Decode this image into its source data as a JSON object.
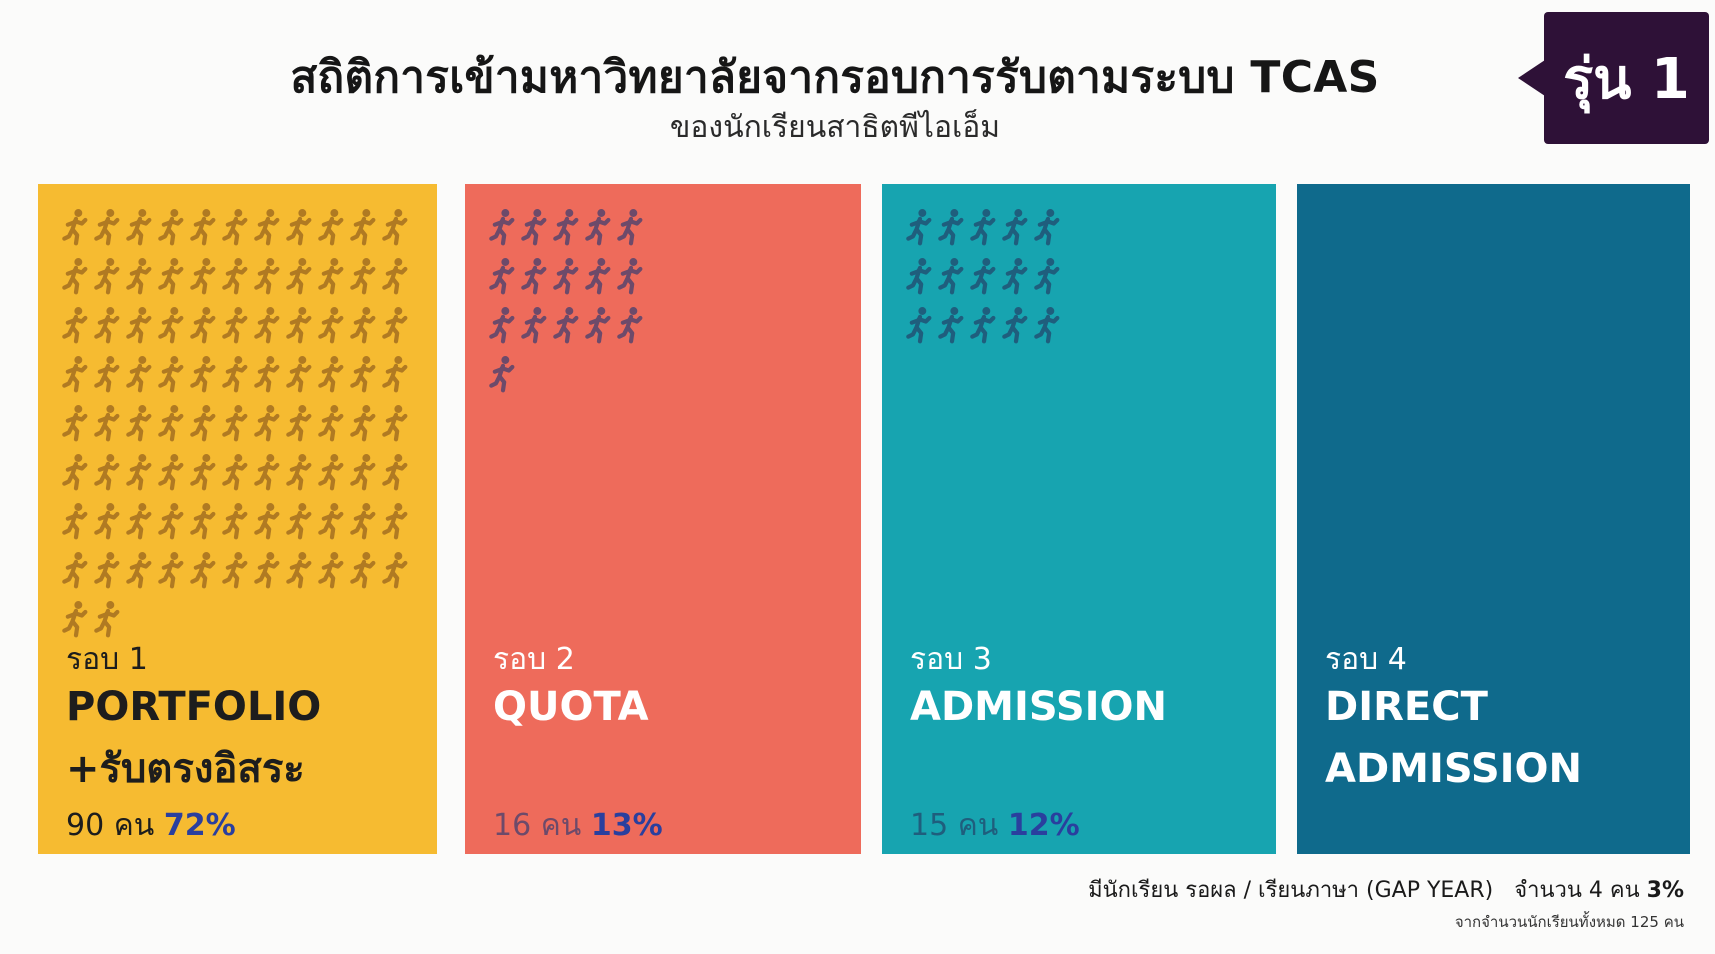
{
  "title": "สถิติการเข้ามหาวิทยาลัยจากรอบการรับตามระบบ TCAS",
  "subtitle": "ของนักเรียนสาธิตพีไอเอ็ม",
  "generation_badge": "รุ่น 1",
  "colors": {
    "portfolio": "#f6bb31",
    "quota": "#ee6b5b",
    "admission": "#17a4b0",
    "direct_admission": "#0f6a8c",
    "badge": "#2e1137",
    "percent": "#2a3f9e"
  },
  "icon": "running-person-icon",
  "chart_data": {
    "type": "bar",
    "title": "สถิติการเข้ามหาวิทยาลัยจากรอบการรับตามระบบ TCAS",
    "subtitle": "ของนักเรียนสาธิตพีไอเอ็ม",
    "categories": [
      {
        "round": "รอบ 1",
        "name_lines": [
          "PORTFOLIO",
          "+รับตรงอิสระ"
        ],
        "count": 90,
        "count_text": "90 คน",
        "percent_text": "72%",
        "color": "#f6bb31",
        "text_color": "#1d1d1d",
        "icon_color": "#b07a22",
        "icons_per_row": 11
      },
      {
        "round": "รอบ 2",
        "name_lines": [
          "QUOTA"
        ],
        "count": 16,
        "count_text": "16 คน",
        "percent_text": "13%",
        "color": "#ee6b5b",
        "text_color": "#ffffff",
        "icon_color": "#6d4a6a",
        "icons_per_row": 5
      },
      {
        "round": "รอบ 3",
        "name_lines": [
          "ADMISSION"
        ],
        "count": 15,
        "count_text": "15 คน",
        "percent_text": "12%",
        "color": "#17a4b0",
        "text_color": "#ffffff",
        "icon_color": "#1f5e7d",
        "icons_per_row": 5
      },
      {
        "round": "รอบ 4",
        "name_lines": [
          "DIRECT",
          "ADMISSION"
        ],
        "count": 0,
        "count_text": "",
        "percent_text": "",
        "color": "#0f6a8c",
        "text_color": "#ffffff",
        "icon_color": "#0b4d66",
        "icons_per_row": 5
      }
    ]
  },
  "gap_year_note": {
    "label": "มีนักเรียน รอผล / เรียนภาษา (GAP YEAR)",
    "count_text": "จำนวน 4 คน",
    "percent_text": "3%"
  },
  "total_note": "จากจำนวนนักเรียนทั้งหมด 125 คน"
}
